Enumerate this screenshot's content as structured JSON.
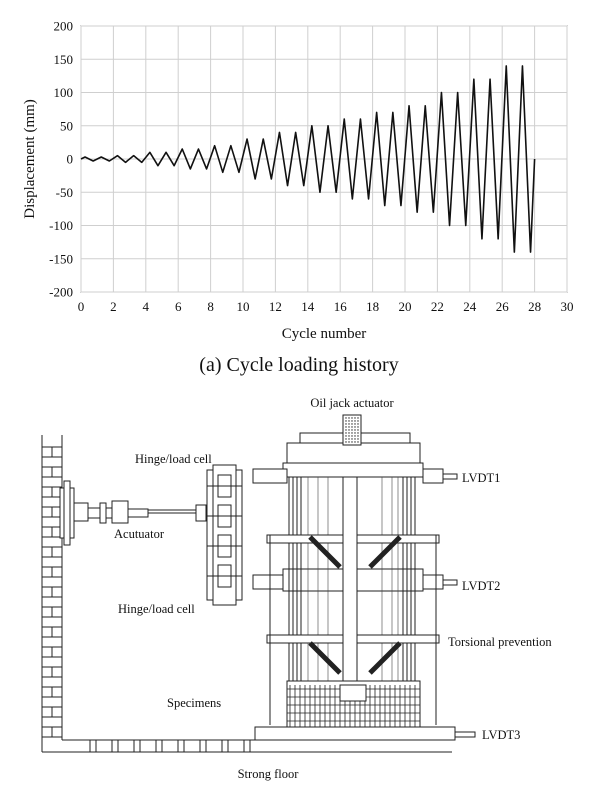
{
  "chart_data": {
    "type": "line",
    "xlabel": "Cycle number",
    "ylabel": "Displacement (mm)",
    "xlim": [
      0,
      30
    ],
    "ylim": [
      -200,
      200
    ],
    "x_ticks": [
      0,
      2,
      4,
      6,
      8,
      10,
      12,
      14,
      16,
      18,
      20,
      22,
      24,
      26,
      28,
      30
    ],
    "y_ticks": [
      200,
      150,
      100,
      50,
      0,
      -50,
      -100,
      -150,
      -200
    ],
    "grid": true,
    "series": [
      {
        "x": [
          0,
          0.25,
          0.75,
          1.25,
          1.75,
          2.25,
          2.75,
          3.25,
          3.75,
          4.25,
          4.75,
          5.25,
          5.75,
          6.25,
          6.75,
          7.25,
          7.75,
          8.25,
          8.75,
          9.25,
          9.75,
          10.25,
          10.75,
          11.25,
          11.75,
          12.25,
          12.75,
          13.25,
          13.75,
          14.25,
          14.75,
          15.25,
          15.75,
          16.25,
          16.75,
          17.25,
          17.75,
          18.25,
          18.75,
          19.25,
          19.75,
          20.25,
          20.75,
          21.25,
          21.75,
          22.25,
          22.75,
          23.25,
          23.75,
          24.25,
          24.75,
          25.25,
          25.75,
          26.25,
          26.75,
          27.25,
          27.75,
          28
        ],
        "values": [
          0,
          3,
          -3,
          3,
          -3,
          5,
          -5,
          5,
          -5,
          10,
          -10,
          10,
          -10,
          15,
          -15,
          15,
          -15,
          20,
          -20,
          20,
          -20,
          30,
          -30,
          30,
          -30,
          40,
          -40,
          40,
          -40,
          50,
          -50,
          50,
          -50,
          60,
          -60,
          60,
          -60,
          70,
          -70,
          70,
          -70,
          80,
          -80,
          80,
          -80,
          100,
          -100,
          100,
          -100,
          120,
          -120,
          120,
          -120,
          140,
          -140,
          140,
          -140,
          0
        ]
      }
    ]
  },
  "caption": "(a) Cycle loading history",
  "setup": {
    "labels": {
      "oil_jack": "Oil jack actuator",
      "hinge_top": "Hinge/load cell",
      "lvdt1": "LVDT1",
      "actuator": "Acutuator",
      "lvdt2": "LVDT2",
      "hinge_bottom": "Hinge/load cell",
      "torsional": "Torsional prevention",
      "specimens": "Specimens",
      "lvdt3": "LVDT3",
      "strong_floor": "Strong floor"
    }
  }
}
